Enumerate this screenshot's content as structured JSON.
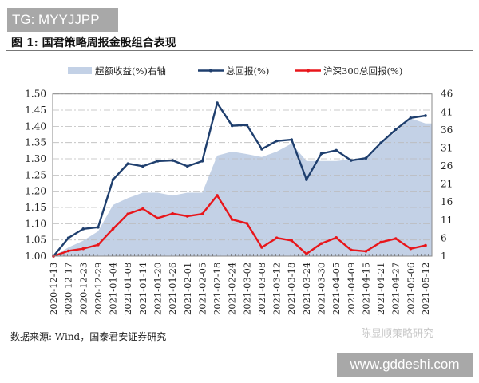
{
  "watermark_top": "TG: MYYJJPP",
  "figure_title": "图 1:  国君策略周报金股组合表现",
  "source": "数据来源:  Wind，国泰君安证券研究",
  "wechat_watermark": "陈显顺策略研究",
  "watermark_bottom": "www.gddeshi.com",
  "chart_data": {
    "type": "line+area",
    "legend_position": "top",
    "grid": true,
    "categories": [
      "2020-12-13",
      "2020-12-17",
      "2020-12-23",
      "2020-12-29",
      "2021-01-04",
      "2021-01-08",
      "2021-01-14",
      "2021-01-20",
      "2021-01-26",
      "2021-02-01",
      "2021-02-05",
      "2021-02-18",
      "2021-02-24",
      "2021-03-02",
      "2021-03-08",
      "2021-03-12",
      "2021-03-18",
      "2021-03-24",
      "2021-03-30",
      "2021-04-05",
      "2021-04-09",
      "2021-04-15",
      "2021-04-21",
      "2021-04-27",
      "2021-05-06",
      "2021-05-12"
    ],
    "y_left": {
      "range": [
        1.0,
        1.5
      ],
      "ticks": [
        "1.00",
        "1.05",
        "1.10",
        "1.15",
        "1.20",
        "1.25",
        "1.30",
        "1.35",
        "1.40",
        "1.45",
        "1.50"
      ]
    },
    "y_right": {
      "range": [
        1,
        46
      ],
      "ticks": [
        "1",
        "6",
        "11",
        "16",
        "21",
        "26",
        "31",
        "36",
        "41",
        "46"
      ]
    },
    "series": [
      {
        "name": "超额收益(%)右轴",
        "type": "area",
        "axis": "right",
        "color": "#c3d1e6",
        "values": [
          1,
          3.4,
          5.3,
          7.9,
          15.2,
          17.1,
          18.6,
          18.6,
          17.8,
          18.6,
          18.6,
          28.9,
          30.0,
          29.3,
          28.5,
          30.0,
          32.2,
          27.4,
          27.4,
          27.4,
          27.8,
          28.2,
          32.2,
          35.5,
          39.2,
          37.8
        ]
      },
      {
        "name": "总回报(%)",
        "type": "line",
        "axis": "left",
        "color": "#1f3f6e",
        "values": [
          1.0,
          1.056,
          1.084,
          1.089,
          1.236,
          1.285,
          1.277,
          1.293,
          1.295,
          1.277,
          1.293,
          1.472,
          1.402,
          1.404,
          1.33,
          1.355,
          1.359,
          1.236,
          1.316,
          1.326,
          1.295,
          1.302,
          1.349,
          1.39,
          1.426,
          1.433
        ]
      },
      {
        "name": "沪深300总回报(%)",
        "type": "line",
        "axis": "left",
        "color": "#e8161b",
        "values": [
          1.0,
          1.016,
          1.023,
          1.035,
          1.084,
          1.13,
          1.146,
          1.117,
          1.131,
          1.123,
          1.13,
          1.187,
          1.113,
          1.101,
          1.027,
          1.056,
          1.048,
          1.007,
          1.039,
          1.057,
          1.019,
          1.015,
          1.043,
          1.054,
          1.023,
          1.033
        ]
      }
    ]
  }
}
